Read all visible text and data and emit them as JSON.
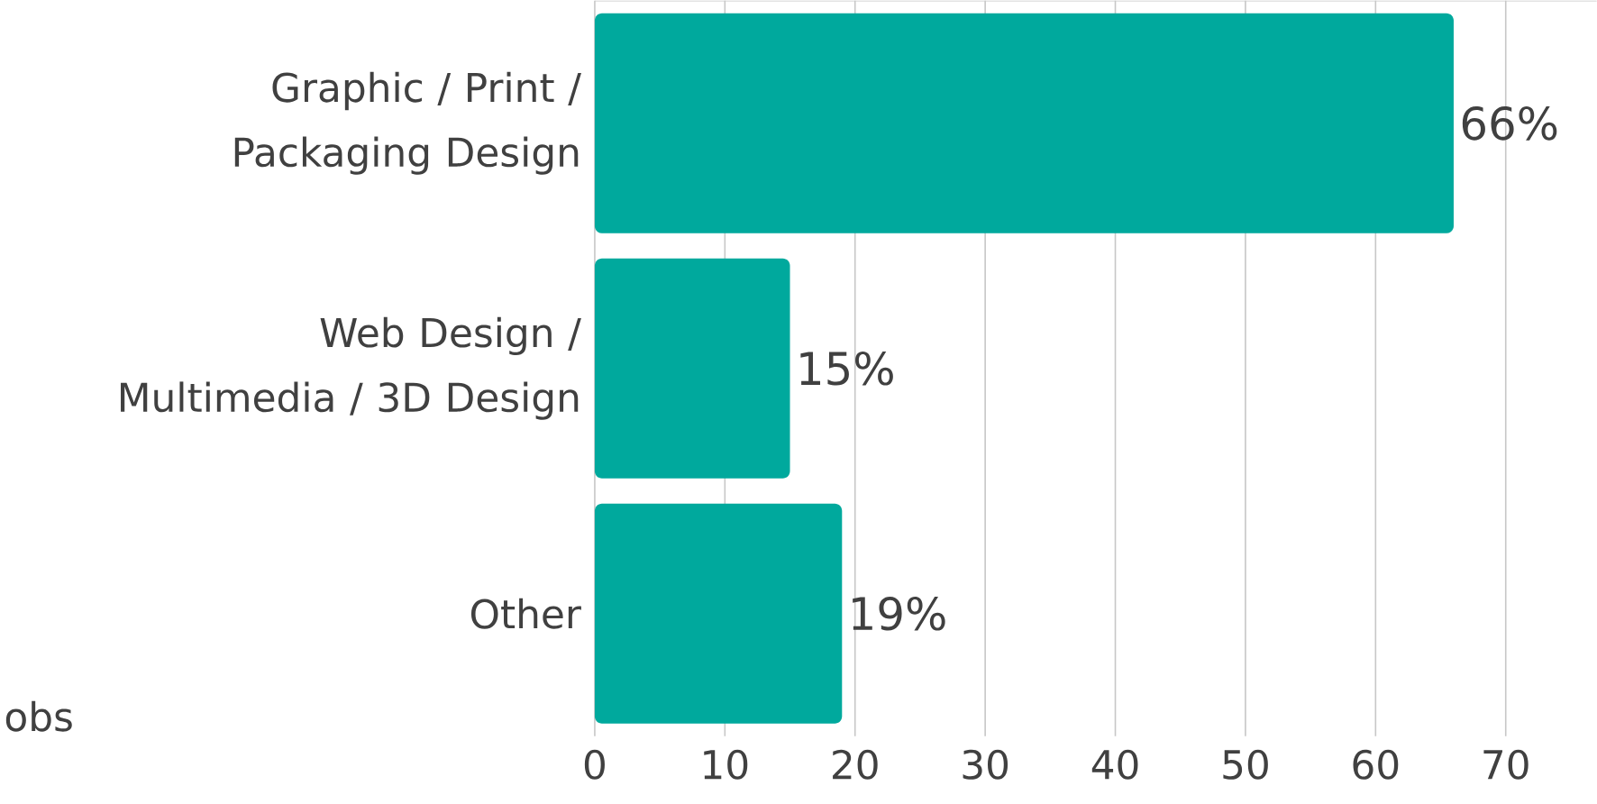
{
  "chart_data": {
    "type": "bar",
    "orientation": "horizontal",
    "categories": [
      "Graphic / Print / Packaging Design",
      "Web Design / Multimedia / 3D Design",
      "Other"
    ],
    "values": [
      66,
      15,
      19
    ],
    "value_labels": [
      "66%",
      "15%",
      "19%"
    ],
    "color": "#00a99d",
    "xlim": [
      0,
      77
    ],
    "xticks": [
      0,
      10,
      20,
      30,
      40,
      50,
      60,
      70
    ],
    "grid": "x",
    "annotations": [
      "obs"
    ]
  }
}
